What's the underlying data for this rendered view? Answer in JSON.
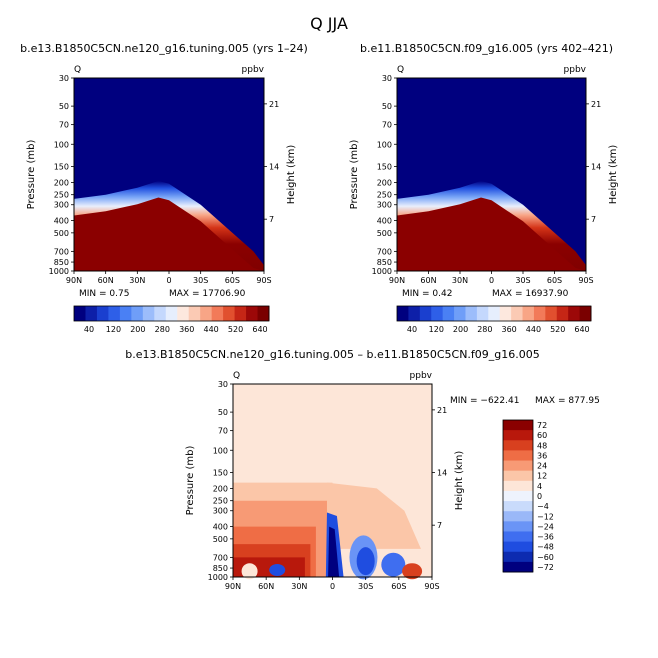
{
  "title": "Q JJA",
  "colors": {
    "abs_scale": [
      "#00007f",
      "#0d1fa8",
      "#1a3fcf",
      "#2e5fe8",
      "#4a80f4",
      "#6f9ef8",
      "#9cbdfb",
      "#c4d8fd",
      "#e6eefd",
      "#fde8de",
      "#fbcab4",
      "#f8a586",
      "#f27a59",
      "#e1502f",
      "#c52616",
      "#9c0808",
      "#7a0000"
    ],
    "diff_scale": [
      "#00007f",
      "#0d2bb0",
      "#1f4de0",
      "#3f6ef0",
      "#6a94f6",
      "#9ab8f8",
      "#c9dbfb",
      "#eef3fd",
      "#fde6d8",
      "#fbc6a8",
      "#f79a75",
      "#ef6d45",
      "#d8401f",
      "#b8180c",
      "#8a0000"
    ]
  },
  "chart_data": [
    {
      "type": "heatmap",
      "title": "b.e13.B1850C5CN.ne120_g16.tuning.005 (yrs 1–24)",
      "left_label": "Q",
      "right_label": "ppbv",
      "ylabel": "Pressure (mb)",
      "ylabel_right": "Height (km)",
      "xticks": [
        "90N",
        "60N",
        "30N",
        "0",
        "30S",
        "60S",
        "90S"
      ],
      "yticks": [
        30,
        50,
        70,
        100,
        150,
        200,
        250,
        300,
        400,
        500,
        700,
        850,
        1000
      ],
      "height_ticks": [
        21,
        14,
        7
      ],
      "ylim": [
        30,
        1000
      ],
      "y_scale": "log",
      "min_label": "MIN = 0.75",
      "max_label": "MAX = 17706.90",
      "colorbar_labels": [
        "40",
        "120",
        "200",
        "280",
        "360",
        "440",
        "520",
        "640"
      ],
      "moist_boundary_mb": [
        [
          -90,
          270
        ],
        [
          -60,
          250
        ],
        [
          -30,
          220
        ],
        [
          -10,
          195
        ],
        [
          0,
          205
        ],
        [
          30,
          300
        ],
        [
          60,
          500
        ],
        [
          80,
          700
        ],
        [
          90,
          900
        ]
      ]
    },
    {
      "type": "heatmap",
      "title": "b.e11.B1850C5CN.f09_g16.005 (yrs 402–421)",
      "left_label": "Q",
      "right_label": "ppbv",
      "ylabel": "Pressure (mb)",
      "ylabel_right": "Height (km)",
      "xticks": [
        "90N",
        "60N",
        "30N",
        "0",
        "30S",
        "60S",
        "90S"
      ],
      "yticks": [
        30,
        50,
        70,
        100,
        150,
        200,
        250,
        300,
        400,
        500,
        700,
        850,
        1000
      ],
      "height_ticks": [
        21,
        14,
        7
      ],
      "ylim": [
        30,
        1000
      ],
      "y_scale": "log",
      "min_label": "MIN = 0.42",
      "max_label": "MAX = 16937.90",
      "colorbar_labels": [
        "40",
        "120",
        "200",
        "280",
        "360",
        "440",
        "520",
        "640"
      ],
      "moist_boundary_mb": [
        [
          -90,
          270
        ],
        [
          -60,
          250
        ],
        [
          -30,
          220
        ],
        [
          -10,
          195
        ],
        [
          0,
          205
        ],
        [
          30,
          300
        ],
        [
          60,
          500
        ],
        [
          80,
          700
        ],
        [
          90,
          900
        ]
      ]
    },
    {
      "type": "heatmap",
      "title": "b.e13.B1850C5CN.ne120_g16.tuning.005 – b.e11.B1850C5CN.f09_g16.005",
      "left_label": "Q",
      "right_label": "ppbv",
      "ylabel": "Pressure (mb)",
      "ylabel_right": "Height (km)",
      "xticks": [
        "90N",
        "60N",
        "30N",
        "0",
        "30S",
        "60S",
        "90S"
      ],
      "yticks": [
        30,
        50,
        70,
        100,
        150,
        200,
        250,
        300,
        400,
        500,
        700,
        850,
        1000
      ],
      "height_ticks": [
        21,
        14,
        7
      ],
      "ylim": [
        30,
        1000
      ],
      "y_scale": "log",
      "min_label": "MIN = −622.41",
      "max_label": "MAX = 877.95",
      "colorbar_labels": [
        "72",
        "60",
        "48",
        "36",
        "24",
        "12",
        "4",
        "0",
        "−4",
        "−12",
        "−24",
        "−36",
        "−48",
        "−60",
        "−72"
      ]
    }
  ]
}
